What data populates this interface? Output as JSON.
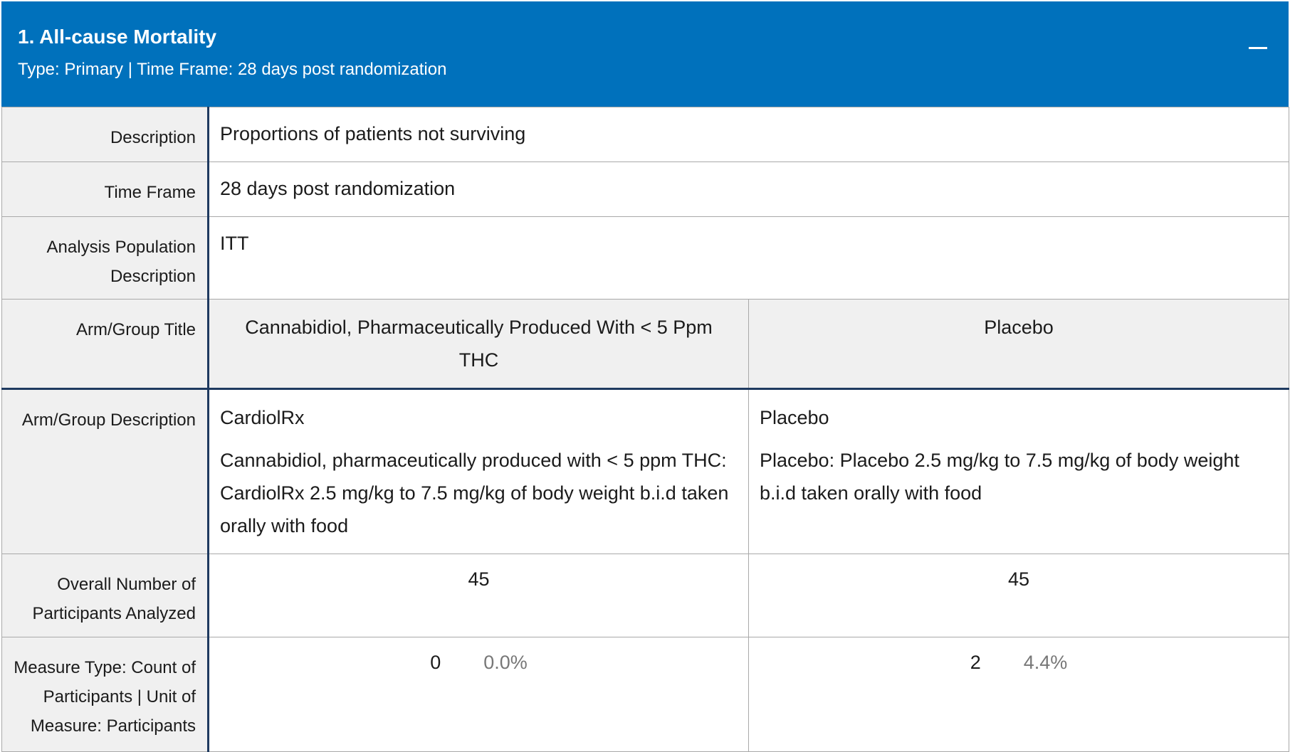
{
  "header": {
    "title": "1. All-cause Mortality",
    "subtitle": "Type: Primary | Time Frame: 28 days post randomization",
    "collapse_symbol": "minus-icon"
  },
  "rows": {
    "description": {
      "label": "Description",
      "value": "Proportions of patients not surviving"
    },
    "time_frame": {
      "label": "Time Frame",
      "value": "28 days post randomization"
    },
    "population": {
      "label": "Analysis Population Description",
      "value": "ITT"
    },
    "arm_title": {
      "label": "Arm/Group Title",
      "arms": [
        "Cannabidiol, Pharmaceutically Produced With < 5 Ppm THC",
        "Placebo"
      ]
    },
    "arm_desc": {
      "label": "Arm/Group Description",
      "arms": [
        {
          "name": "CardiolRx",
          "text": "Cannabidiol, pharmaceutically produced with < 5 ppm THC: CardiolRx 2.5 mg/kg to 7.5 mg/kg of body weight b.i.d taken orally with food"
        },
        {
          "name": "Placebo",
          "text": "Placebo: Placebo 2.5 mg/kg to 7.5 mg/kg of body weight b.i.d taken orally with food"
        }
      ]
    },
    "overall": {
      "label": "Overall Number of Participants Analyzed",
      "values": [
        "45",
        "45"
      ]
    },
    "measure": {
      "label": "Measure Type: Count of Participants | Unit of Measure: Participants",
      "values": [
        {
          "count": "0",
          "percent": "0.0%"
        },
        {
          "count": "2",
          "percent": "4.4%"
        }
      ]
    }
  },
  "colors": {
    "header_bg": "#0071bc",
    "label_bg": "#f0f0f0",
    "divider": "#1f3a60",
    "percent_text": "#777777"
  }
}
